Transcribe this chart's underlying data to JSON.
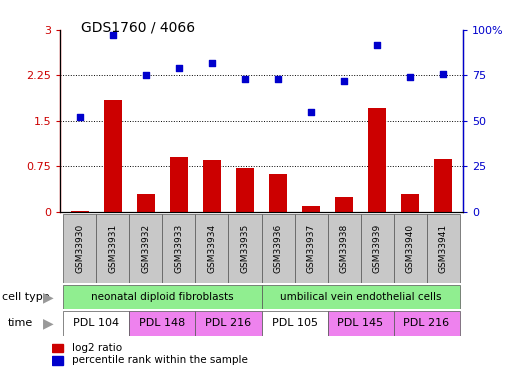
{
  "title": "GDS1760 / 4066",
  "samples": [
    "GSM33930",
    "GSM33931",
    "GSM33932",
    "GSM33933",
    "GSM33934",
    "GSM33935",
    "GSM33936",
    "GSM33937",
    "GSM33938",
    "GSM33939",
    "GSM33940",
    "GSM33941"
  ],
  "log2_ratio": [
    0.02,
    1.85,
    0.3,
    0.9,
    0.85,
    0.72,
    0.62,
    0.1,
    0.25,
    1.72,
    0.3,
    0.88
  ],
  "percentile_rank": [
    52,
    97,
    75,
    79,
    82,
    73,
    73,
    55,
    72,
    92,
    74,
    76
  ],
  "bar_color": "#cc0000",
  "dot_color": "#0000cc",
  "ylim_left": [
    0,
    3
  ],
  "ylim_right": [
    0,
    100
  ],
  "yticks_left": [
    0,
    0.75,
    1.5,
    2.25,
    3
  ],
  "yticks_right": [
    0,
    25,
    50,
    75,
    100
  ],
  "ytick_labels_left": [
    "0",
    "0.75",
    "1.5",
    "2.25",
    "3"
  ],
  "ytick_labels_right": [
    "0",
    "25",
    "50",
    "75",
    "100%"
  ],
  "hlines": [
    0.75,
    1.5,
    2.25
  ],
  "bar_color_left": "#cc0000",
  "dot_color_right": "#0000cc",
  "sample_box_color": "#c8c8c8",
  "cell_type_group1_label": "neonatal diploid fibroblasts",
  "cell_type_group2_label": "umbilical vein endothelial cells",
  "cell_type_color": "#90ee90",
  "time_configs": [
    {
      "label": "PDL 104",
      "color": "#ffffff",
      "span": 2
    },
    {
      "label": "PDL 148",
      "color": "#ee82ee",
      "span": 2
    },
    {
      "label": "PDL 216",
      "color": "#ee82ee",
      "span": 2
    },
    {
      "label": "PDL 105",
      "color": "#ffffff",
      "span": 2
    },
    {
      "label": "PDL 145",
      "color": "#ee82ee",
      "span": 2
    },
    {
      "label": "PDL 216",
      "color": "#ee82ee",
      "span": 2
    }
  ],
  "legend_bar_label": "log2 ratio",
  "legend_dot_label": "percentile rank within the sample",
  "cell_type_row_label": "cell type",
  "time_row_label": "time",
  "arrow_color": "#999999",
  "axis_color_left": "#cc0000",
  "axis_color_right": "#0000cc"
}
